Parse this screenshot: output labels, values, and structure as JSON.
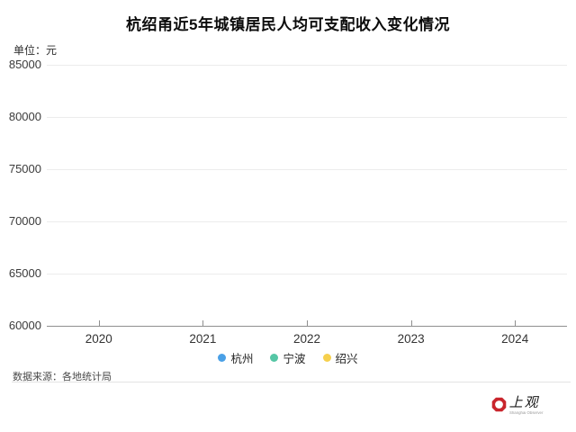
{
  "header": {
    "title": "杭绍甬近5年城镇居民人均可支配收入变化情况",
    "unit_label": "单位：元"
  },
  "chart_data": {
    "type": "line",
    "title": "杭绍甬近5年城镇居民人均可支配收入变化情况",
    "unit": "元",
    "categories": [
      "2020",
      "2021",
      "2022",
      "2023",
      "2024"
    ],
    "series": [
      {
        "name": "杭州",
        "color": "#4aa0e6",
        "values": []
      },
      {
        "name": "宁波",
        "color": "#55c6a5",
        "values": []
      },
      {
        "name": "绍兴",
        "color": "#f6d04d",
        "values": []
      }
    ],
    "xlabel": "",
    "ylabel": "",
    "ylim": [
      60000,
      85000
    ],
    "y_ticks": [
      85000,
      80000,
      75000,
      70000,
      65000,
      60000
    ],
    "grid": true,
    "legend_position": "bottom",
    "colors": {
      "gridline": "#ececec",
      "axis_line": "#8f8f8f",
      "title_text": "#0c0c0c"
    }
  },
  "footer": {
    "source": "数据来源：各地统计局"
  },
  "logo": {
    "cn": "上观",
    "en": "Shanghai Observer",
    "icon_color": "#c9252c"
  }
}
